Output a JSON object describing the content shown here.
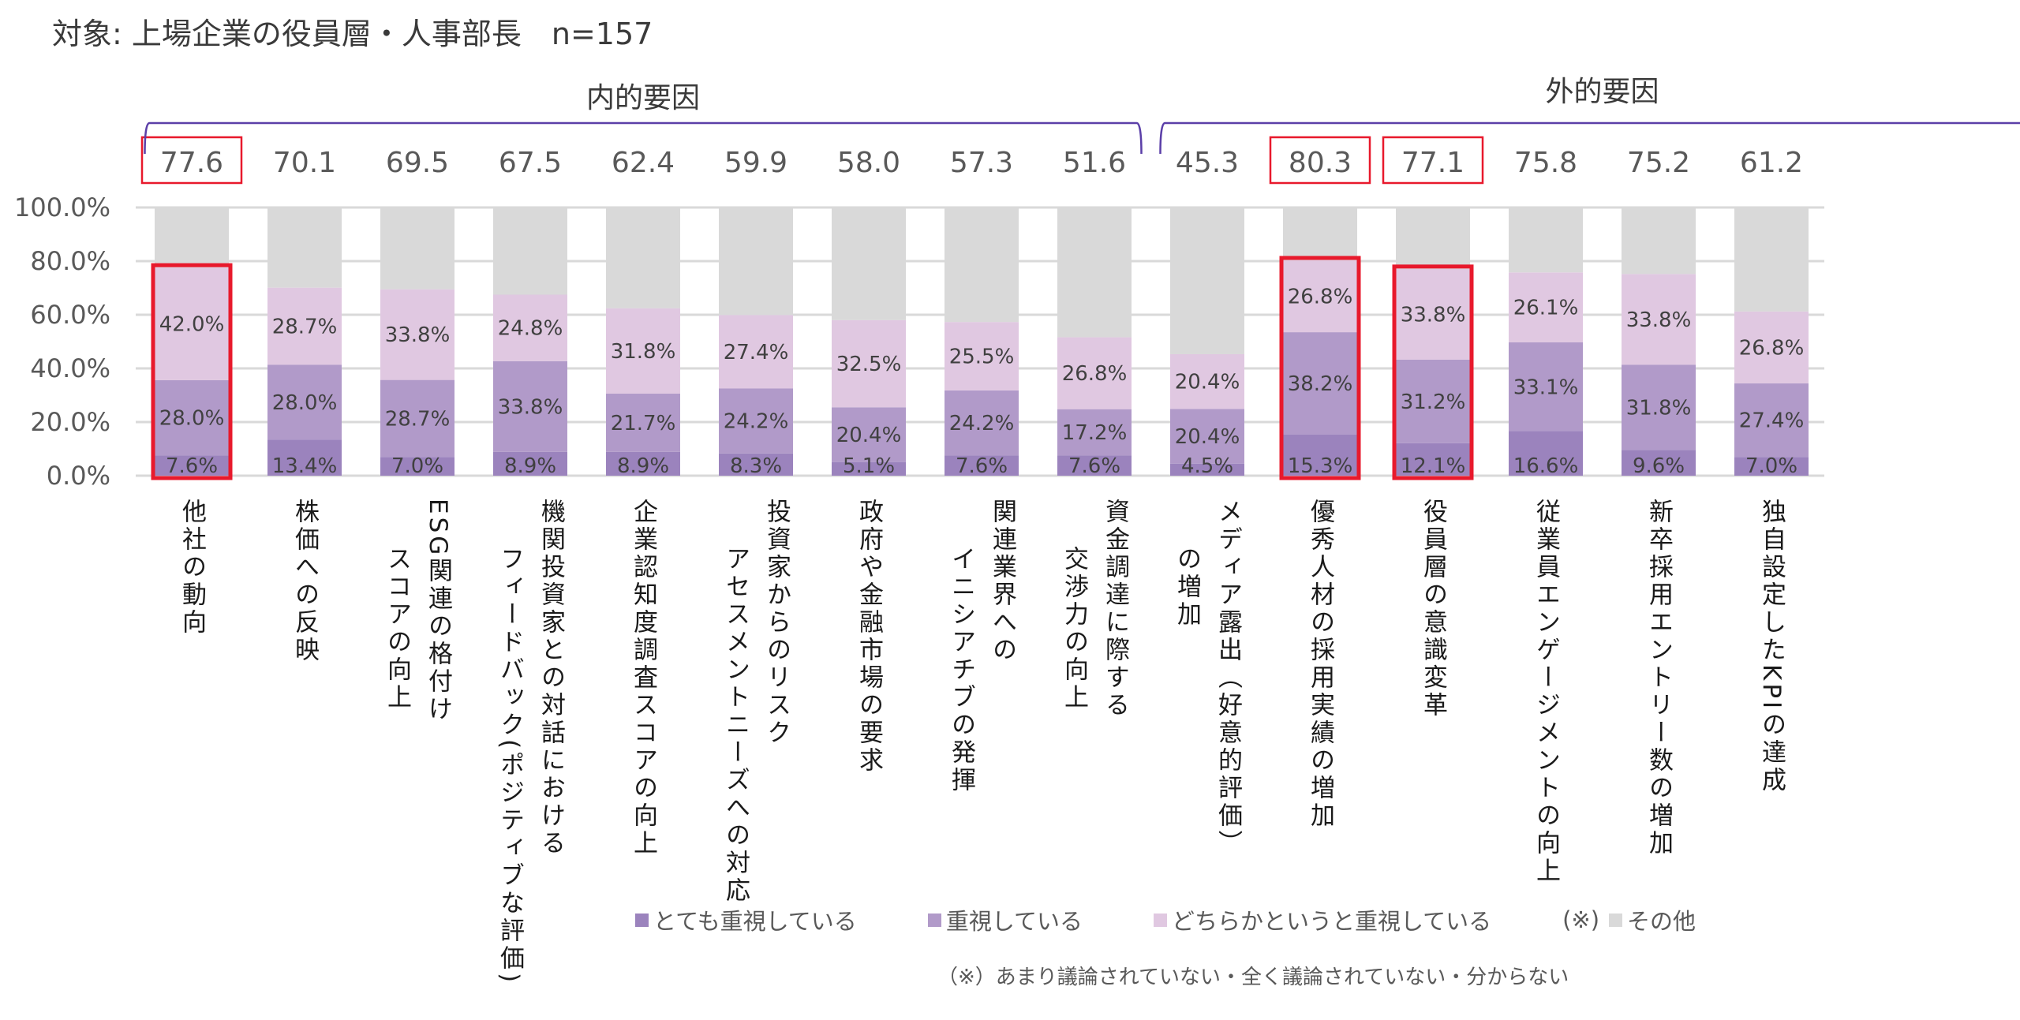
{
  "header": {
    "title": "対象: 上場企業の役員層・人事部長　n=157"
  },
  "chart_data": {
    "type": "bar",
    "stacked": true,
    "title": "対象: 上場企業の役員層・人事部長　n=157",
    "xlabel": "",
    "ylabel": "",
    "ylim": [
      0,
      100
    ],
    "y_ticks": [
      "0.0%",
      "20.0%",
      "40.0%",
      "60.0%",
      "80.0%",
      "100.0%"
    ],
    "grid": true,
    "legend_position": "bottom",
    "groups": [
      {
        "label": "内的要因",
        "start": 0,
        "end": 8
      },
      {
        "label": "外的要因",
        "start": 9,
        "end": 16
      }
    ],
    "categories": [
      [
        "他社の動向"
      ],
      [
        "株価への反映"
      ],
      [
        "ESG関連の格付け",
        "スコアの向上"
      ],
      [
        "機関投資家との対話における",
        "フィードバック(ポジティブな評価)"
      ],
      [
        "企業認知度調査スコアの向上"
      ],
      [
        "投資家からのリスク",
        "アセスメントニーズへの対応"
      ],
      [
        "政府や金融市場の要求"
      ],
      [
        "関連業界への",
        "イニシアチブの発揮"
      ],
      [
        "資金調達に際する",
        "交渉力の向上"
      ],
      [
        "メディア露出（好意的評価）",
        "の増加"
      ],
      [
        "優秀人材の採用実績の増加"
      ],
      [
        "役員層の意識変革"
      ],
      [
        "従業員エンゲージメントの向上"
      ],
      [
        "新卒採用エントリー数の増加"
      ],
      [
        "独自設定したKPIの達成"
      ]
    ],
    "totals": [
      "77.6",
      "70.1",
      "69.5",
      "67.5",
      "62.4",
      "59.9",
      "58.0",
      "57.3",
      "51.6",
      "45.3",
      "80.3",
      "77.1",
      "75.8",
      "75.2",
      "61.2"
    ],
    "highlighted": [
      0,
      10,
      11
    ],
    "series": [
      {
        "name": "とても重視している",
        "color": "#9b83bd",
        "values": [
          7.6,
          13.4,
          7.0,
          8.9,
          8.9,
          8.3,
          5.1,
          7.6,
          7.6,
          4.5,
          15.3,
          12.1,
          16.6,
          9.6,
          7.0
        ]
      },
      {
        "name": "重視している",
        "color": "#b19ac9",
        "values": [
          28.0,
          28.0,
          28.7,
          33.8,
          21.7,
          24.2,
          20.4,
          24.2,
          17.2,
          20.4,
          38.2,
          31.2,
          33.1,
          31.8,
          27.4
        ]
      },
      {
        "name": "どちらかというと重視している",
        "color": "#e0c8e1",
        "values": [
          42.0,
          28.7,
          33.8,
          24.8,
          31.8,
          27.4,
          32.5,
          25.5,
          26.8,
          20.4,
          26.8,
          33.8,
          26.1,
          33.8,
          26.8
        ]
      },
      {
        "name": "その他",
        "color": "#d9d9d9",
        "note": "(※)",
        "values": [
          22.4,
          29.9,
          30.5,
          32.5,
          37.6,
          40.1,
          42.0,
          42.7,
          48.4,
          54.7,
          19.7,
          22.9,
          24.2,
          24.8,
          38.8
        ]
      }
    ],
    "label_series": [
      0,
      1,
      2
    ]
  },
  "colors": {
    "highlight": "#e8192c",
    "bracket": "#5b3fa8",
    "grid": "#d9d9d9"
  },
  "legend": {
    "items": [
      {
        "label": "とても重視している",
        "color": "#9b83bd"
      },
      {
        "label": "重視している",
        "color": "#b19ac9"
      },
      {
        "label": "どちらかというと重視している",
        "color": "#e0c8e1"
      },
      {
        "label": "その他",
        "color": "#d9d9d9",
        "prefix": "(※)"
      }
    ]
  },
  "footnote": "（※）あまり議論されていない・全く議論されていない・分からない"
}
